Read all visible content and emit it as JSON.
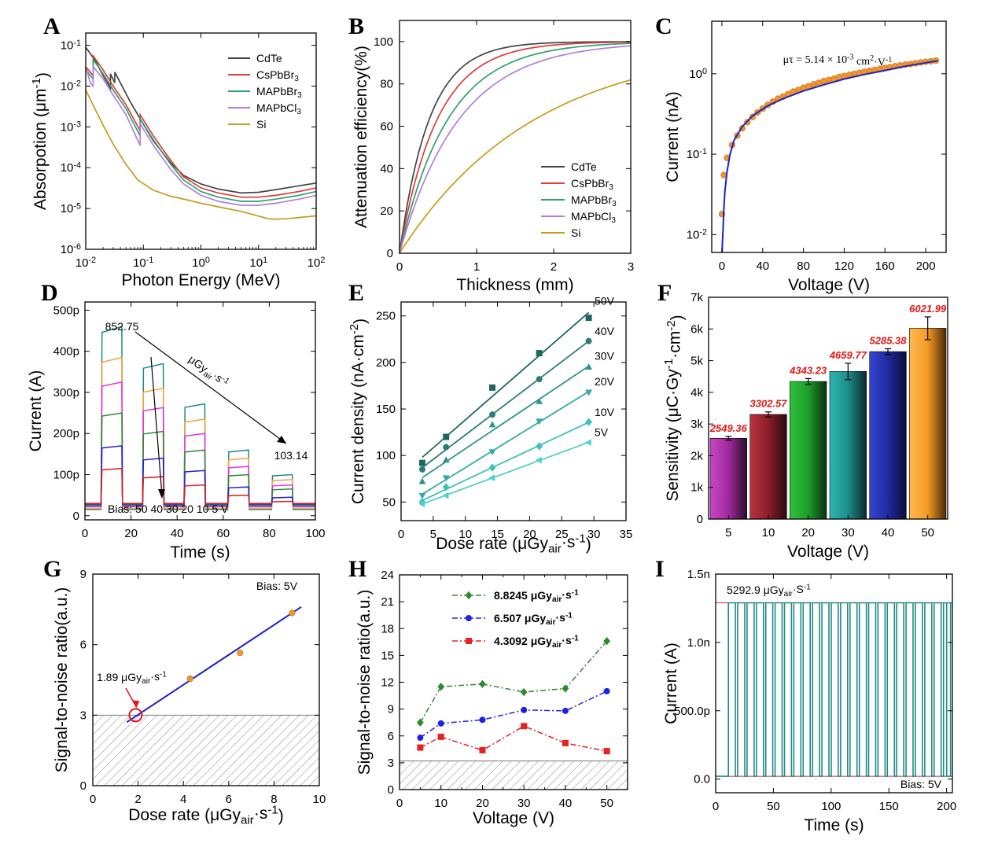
{
  "panels": [
    {
      "id": "A",
      "chart_data": {
        "type": "line",
        "xlabel": "Photon Energy (MeV)",
        "ylabel": "Absorpotion (μm^-1)",
        "xscale": "log",
        "yscale": "log",
        "xlim": [
          0.01,
          100
        ],
        "ylim": [
          1e-06,
          0.2
        ],
        "xtick_labels": [
          "10^-2",
          "10^-1",
          "10^0",
          "10^1",
          "10^2"
        ],
        "ytick_labels": [
          "10^-6",
          "10^-5",
          "10^-4",
          "10^-3",
          "10^-2",
          "10^-1"
        ],
        "legend": "top-right",
        "series": [
          {
            "name": "CdTe",
            "color": "#444444",
            "x": [
              0.01,
              0.015,
              0.02,
              0.0268,
              0.0269,
              0.0319,
              0.032,
              0.04,
              0.06,
              0.09,
              0.15,
              0.3,
              0.5,
              1,
              2,
              5,
              10,
              20,
              50,
              100
            ],
            "y": [
              0.09,
              0.04,
              0.018,
              0.009,
              0.02,
              0.012,
              0.022,
              0.012,
              0.004,
              0.0015,
              0.00045,
              0.00013,
              6.5e-05,
              4e-05,
              3e-05,
              2.4e-05,
              2.5e-05,
              2.9e-05,
              3.6e-05,
              4.2e-05
            ]
          },
          {
            "name": "CsPbBr_3",
            "color": "#e03c3c",
            "x": [
              0.01,
              0.0134,
              0.0135,
              0.02,
              0.03,
              0.05,
              0.088,
              0.0881,
              0.15,
              0.3,
              0.5,
              1,
              2,
              5,
              10,
              20,
              50,
              100
            ],
            "y": [
              0.03,
              0.018,
              0.055,
              0.025,
              0.01,
              0.0035,
              0.0008,
              0.002,
              0.0006,
              0.00015,
              6e-05,
              3.2e-05,
              2.4e-05,
              1.9e-05,
              1.9e-05,
              2.1e-05,
              2.6e-05,
              3.2e-05
            ]
          },
          {
            "name": "MAPbBr_3",
            "color": "#2aa36b",
            "x": [
              0.01,
              0.0134,
              0.0135,
              0.02,
              0.03,
              0.05,
              0.088,
              0.0881,
              0.15,
              0.3,
              0.5,
              1,
              2,
              5,
              10,
              20,
              50,
              100
            ],
            "y": [
              0.025,
              0.015,
              0.045,
              0.02,
              0.008,
              0.0028,
              0.0006,
              0.0016,
              0.00048,
              0.00012,
              5e-05,
              2.6e-05,
              1.9e-05,
              1.5e-05,
              1.5e-05,
              1.7e-05,
              2.1e-05,
              2.6e-05
            ]
          },
          {
            "name": "MAPbCl_3",
            "color": "#b07ee0",
            "x": [
              0.01,
              0.012,
              0.0134,
              0.0135,
              0.02,
              0.03,
              0.05,
              0.088,
              0.0881,
              0.15,
              0.3,
              0.5,
              1,
              2,
              5,
              10,
              20,
              50,
              100
            ],
            "y": [
              0.03,
              0.012,
              0.01,
              0.03,
              0.015,
              0.006,
              0.002,
              0.00035,
              0.0012,
              0.00035,
              9e-05,
              4e-05,
              2.1e-05,
              1.5e-05,
              1.2e-05,
              1.2e-05,
              1.35e-05,
              1.7e-05,
              2.1e-05
            ]
          },
          {
            "name": "Si",
            "color": "#c89b1a",
            "x": [
              0.01,
              0.015,
              0.02,
              0.03,
              0.05,
              0.08,
              0.15,
              0.3,
              0.6,
              1,
              2,
              5,
              10,
              15,
              20,
              30,
              50,
              100
            ],
            "y": [
              0.008,
              0.0025,
              0.0011,
              0.00038,
              0.00012,
              5e-05,
              2.8e-05,
              2e-05,
              1.6e-05,
              1.35e-05,
              1.1e-05,
              8.5e-06,
              6.5e-06,
              5.6e-06,
              5.5e-06,
              5.6e-06,
              6e-06,
              6.6e-06
            ]
          }
        ]
      }
    },
    {
      "id": "B",
      "chart_data": {
        "type": "line",
        "xlabel": "Thickness (mm)",
        "ylabel": "Attenuation efficiency(%)",
        "xlim": [
          0,
          3
        ],
        "ylim": [
          0,
          110
        ],
        "xticks": [
          0,
          1,
          2,
          3
        ],
        "yticks": [
          0,
          20,
          40,
          60,
          80,
          100
        ],
        "legend": "bottom-right",
        "series": [
          {
            "name": "CdTe",
            "color": "#444444",
            "coef": 2.6
          },
          {
            "name": "CsPbBr_3",
            "color": "#e03c3c",
            "coef": 2.05
          },
          {
            "name": "MAPbBr_3",
            "color": "#2aa36b",
            "coef": 1.6
          },
          {
            "name": "MAPbCl_3",
            "color": "#b07ee0",
            "coef": 1.3
          },
          {
            "name": "Si",
            "color": "#c89b1a",
            "coef": 0.57
          }
        ]
      }
    },
    {
      "id": "C",
      "chart_data": {
        "type": "scatter",
        "xlabel": "Voltage (V)",
        "ylabel": "Current (nA)",
        "yscale": "log",
        "xlim": [
          -10,
          220
        ],
        "ylim": [
          0.006,
          4.5
        ],
        "xticks": [
          0,
          40,
          80,
          120,
          160,
          200
        ],
        "ytick_labels": [
          "10^-2",
          "10^-1",
          "10^0"
        ],
        "annotation": "μτ = 5.14 × 10^-3 cm^2·V^-1",
        "points_color": "#f0952b",
        "fit_color": "#1a22c8",
        "x": [
          0,
          2,
          5,
          10,
          15,
          20,
          25,
          30,
          35,
          40,
          45,
          50,
          55,
          60,
          65,
          70,
          75,
          80,
          85,
          90,
          95,
          100,
          105,
          110,
          115,
          120,
          125,
          130,
          135,
          140,
          145,
          150,
          155,
          160,
          165,
          170,
          175,
          180,
          185,
          190,
          195,
          200,
          205,
          210
        ],
        "y": [
          0.018,
          0.055,
          0.09,
          0.13,
          0.17,
          0.21,
          0.25,
          0.29,
          0.33,
          0.37,
          0.41,
          0.45,
          0.49,
          0.52,
          0.56,
          0.6,
          0.63,
          0.67,
          0.7,
          0.74,
          0.77,
          0.81,
          0.84,
          0.87,
          0.91,
          0.94,
          0.97,
          1.0,
          1.03,
          1.06,
          1.09,
          1.12,
          1.15,
          1.18,
          1.21,
          1.24,
          1.27,
          1.3,
          1.32,
          1.35,
          1.38,
          1.41,
          1.43,
          1.46
        ],
        "fit_x": [
          0.1,
          0.5,
          1,
          2,
          3,
          5,
          8,
          12,
          20,
          30,
          45,
          60,
          80,
          100,
          120,
          140,
          160,
          180,
          200,
          212
        ],
        "fit_y": [
          0.006,
          0.008,
          0.011,
          0.022,
          0.035,
          0.06,
          0.1,
          0.15,
          0.22,
          0.3,
          0.4,
          0.49,
          0.61,
          0.73,
          0.86,
          0.98,
          1.1,
          1.24,
          1.37,
          1.45
        ]
      }
    },
    {
      "id": "D",
      "chart_data": {
        "type": "line",
        "xlabel": "Time (s)",
        "ylabel": "Current (A)",
        "xlim": [
          0,
          100
        ],
        "ylim": [
          -10,
          520
        ],
        "xticks": [
          0,
          20,
          40,
          60,
          80,
          100
        ],
        "ytick_labels": [
          "0",
          "100p",
          "200p",
          "300p",
          "400p",
          "500p"
        ],
        "yticks": [
          0,
          100,
          200,
          300,
          400,
          500
        ],
        "annotation_top": "852.75",
        "annotation_bottom": "103.14",
        "arrow_label": "μGy_air·s^-1",
        "bias_label": "Bias: 50 40 30 20 10 5 V",
        "on_windows": [
          [
            7,
            16
          ],
          [
            25,
            34
          ],
          [
            43,
            52
          ],
          [
            62,
            71
          ],
          [
            81,
            90
          ]
        ],
        "baselines": [
          15,
          18,
          22,
          25,
          28,
          30
        ],
        "series": [
          {
            "name": "50 V",
            "color": "#1f8a8a",
            "levels": [
              460,
              370,
              272,
              160,
              100
            ]
          },
          {
            "name": "40 V",
            "color": "#f7a23a",
            "levels": [
              385,
              310,
              235,
              140,
              88
            ]
          },
          {
            "name": "30 V",
            "color": "#e82fe8",
            "levels": [
              325,
              263,
              200,
              120,
              75
            ]
          },
          {
            "name": "20 V",
            "color": "#2e8a2e",
            "levels": [
              250,
              205,
              160,
              100,
              65
            ]
          },
          {
            "name": "10 V",
            "color": "#2020d8",
            "levels": [
              170,
              140,
              110,
              70,
              45
            ]
          },
          {
            "name": "5 V",
            "color": "#d82020",
            "levels": [
              115,
              95,
              75,
              50,
              35
            ]
          }
        ]
      }
    },
    {
      "id": "E",
      "chart_data": {
        "type": "scatter",
        "xlabel": "Dose rate (μGy_air·s^-1)",
        "ylabel": "Current density (nA·cm^-2)",
        "xlim": [
          0,
          35
        ],
        "ylim": [
          30,
          265
        ],
        "xticks": [
          0,
          5,
          10,
          15,
          20,
          25,
          30,
          35
        ],
        "yticks": [
          50,
          100,
          150,
          200,
          250
        ],
        "x": [
          3.3,
          7,
          14.2,
          21.5,
          29.2
        ],
        "series": [
          {
            "name": "50V",
            "color": "#1e6660",
            "marker": "square",
            "values": [
              92,
              120,
              173,
              210,
              248
            ]
          },
          {
            "name": "40V",
            "color": "#2a7d78",
            "marker": "circle",
            "values": [
              85,
              109,
              144,
              182,
              223
            ]
          },
          {
            "name": "30V",
            "color": "#2e948c",
            "marker": "triangle-up",
            "values": [
              72,
              95,
              133,
              158,
              195
            ]
          },
          {
            "name": "20V",
            "color": "#33aba3",
            "marker": "triangle-down",
            "values": [
              57,
              76,
              104,
              137,
              168
            ]
          },
          {
            "name": "10V",
            "color": "#3ec1b8",
            "marker": "diamond",
            "values": [
              50,
              66,
              87,
              110,
              136
            ]
          },
          {
            "name": "5V",
            "color": "#4fd0c8",
            "marker": "triangle-left",
            "values": [
              48,
              57,
              76,
              95,
              114
            ]
          }
        ]
      }
    },
    {
      "id": "F",
      "chart_data": {
        "type": "bar",
        "xlabel": "Voltage (V)",
        "ylabel": "Sensitivity (μC·Gy^-1·cm^-2)",
        "categories": [
          "5",
          "10",
          "20",
          "30",
          "40",
          "50"
        ],
        "values": [
          2549.36,
          3302.57,
          4343.23,
          4659.77,
          5285.38,
          6021.99
        ],
        "value_labels": [
          "2549.36",
          "3302.57",
          "4343.23",
          "4659.77",
          "5285.38",
          "6021.99"
        ],
        "errors": [
          60,
          80,
          90,
          260,
          90,
          360
        ],
        "ylim": [
          0,
          7000
        ],
        "yticks": [
          0,
          1000,
          2000,
          3000,
          4000,
          5000,
          6000,
          7000
        ],
        "ytick_labels": [
          "0",
          "1k",
          "2k",
          "3k",
          "4k",
          "5k",
          "6k",
          "7k"
        ],
        "colors": [
          "#a12a9c",
          "#8b1d2a",
          "#1e9e2a",
          "#1e8d8a",
          "#1e2aa0",
          "#f39a22"
        ]
      }
    },
    {
      "id": "G",
      "chart_data": {
        "type": "scatter",
        "xlabel": "Dose rate (μGy_air·s^-1)",
        "ylabel": "Signal-to-noise ratio(a.u.)",
        "xlim": [
          0,
          10
        ],
        "ylim": [
          0,
          9
        ],
        "xticks": [
          0,
          2,
          4,
          6,
          8,
          10
        ],
        "yticks": [
          0,
          3,
          6,
          9
        ],
        "bias_label": "Bias: 5V",
        "annotation": "1.89 μGy_air·s^-1",
        "threshold": 3,
        "limit_x": 1.89,
        "x": [
          4.3,
          6.5,
          8.8
        ],
        "y": [
          4.55,
          5.65,
          7.35
        ],
        "fit_x": [
          1.5,
          9.2
        ],
        "fit_y": [
          2.7,
          7.6
        ]
      }
    },
    {
      "id": "H",
      "chart_data": {
        "type": "line",
        "xlabel": "Voltage (V)",
        "ylabel": "Signal-to-noise ratio(a.u.)",
        "xlim": [
          0,
          55
        ],
        "ylim": [
          0,
          24
        ],
        "xticks": [
          0,
          5,
          10,
          15,
          20,
          25,
          30,
          35,
          40,
          45,
          50,
          55
        ],
        "xtick_labels": [
          "0",
          "10",
          "20",
          "30",
          "40",
          "50"
        ],
        "xtick_label_values": [
          0,
          10,
          20,
          30,
          40,
          50
        ],
        "yticks": [
          0,
          3,
          6,
          9,
          12,
          15,
          18,
          21,
          24
        ],
        "threshold": 3.2,
        "x": [
          5,
          10,
          20,
          30,
          40,
          50
        ],
        "legend_labels": [
          "8.8245 μGy_air·s^-1",
          "6.507 μGy_air·s^-1",
          "4.3092 μGy_air·s^-1"
        ],
        "series": [
          {
            "name": "8.8245 μGy_air·s^-1",
            "color": "#2e8a2e",
            "marker": "diamond",
            "values": [
              7.5,
              11.5,
              11.8,
              10.9,
              11.3,
              16.6
            ]
          },
          {
            "name": "6.507 μGy_air·s^-1",
            "color": "#2020e8",
            "marker": "circle",
            "values": [
              5.8,
              7.4,
              7.8,
              8.9,
              8.8,
              11.0
            ]
          },
          {
            "name": "4.3092 μGy_air·s^-1",
            "color": "#e82020",
            "marker": "square",
            "values": [
              4.7,
              5.9,
              4.4,
              7.1,
              5.2,
              4.3
            ]
          }
        ]
      }
    },
    {
      "id": "I",
      "chart_data": {
        "type": "line",
        "xlabel": "Time (s)",
        "ylabel": "Current (A)",
        "xlim": [
          0,
          205
        ],
        "ylim": [
          -0.1,
          1.5
        ],
        "xticks": [
          0,
          50,
          100,
          150,
          200
        ],
        "yticks": [
          0,
          0.5,
          1.0,
          1.5
        ],
        "ytick_labels": [
          "0.0",
          "500.0p",
          "1.0n",
          "1.5n"
        ],
        "annotation": "5292.9 μGy_air·S^-1",
        "bias_label": "Bias: 5V",
        "on_level": 1.29,
        "off_level": 0.02,
        "period": 8.1,
        "start": 11,
        "end": 200,
        "cycles": 24,
        "color": "#1f8a8a"
      }
    }
  ]
}
